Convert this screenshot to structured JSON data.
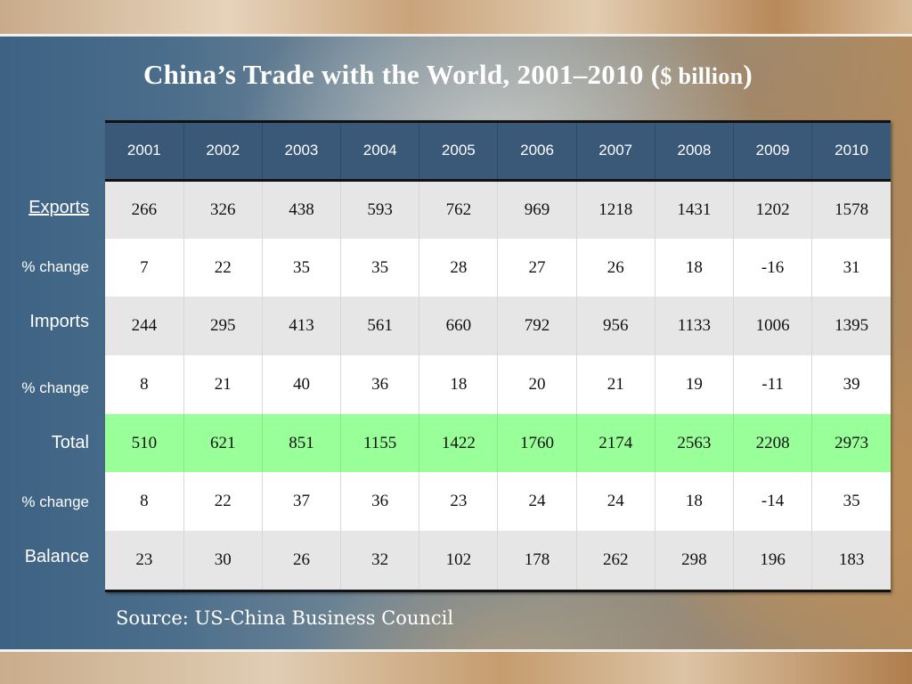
{
  "title": {
    "main": "China’s Trade with the World, 2001–2010 (",
    "unit": "$ billion",
    "close": ")"
  },
  "years": [
    "2001",
    "2002",
    "2003",
    "2004",
    "2005",
    "2006",
    "2007",
    "2008",
    "2009",
    "2010"
  ],
  "row_labels": [
    "Exports",
    "% change",
    "Imports",
    "% change",
    "Total",
    "% change",
    "Balance"
  ],
  "rows": [
    [
      "266",
      "326",
      "438",
      "593",
      "762",
      "969",
      "1218",
      "1431",
      "1202",
      "1578"
    ],
    [
      "7",
      "22",
      "35",
      "35",
      "28",
      "27",
      "26",
      "18",
      "-16",
      "31"
    ],
    [
      "244",
      "295",
      "413",
      "561",
      "660",
      "792",
      "956",
      "1133",
      "1006",
      "1395"
    ],
    [
      "8",
      "21",
      "40",
      "36",
      "18",
      "20",
      "21",
      "19",
      "-11",
      "39"
    ],
    [
      "510",
      "621",
      "851",
      "1155",
      "1422",
      "1760",
      "2174",
      "2563",
      "2208",
      "2973"
    ],
    [
      "8",
      "22",
      "37",
      "36",
      "23",
      "24",
      "24",
      "18",
      "-14",
      "35"
    ],
    [
      "23",
      "30",
      "26",
      "32",
      "102",
      "178",
      "262",
      "298",
      "196",
      "183"
    ]
  ],
  "source": "Source: US-China Business Council",
  "colors": {
    "header": "#3a5878",
    "total_row": "#99ff99",
    "shaded_row": "#e6e6e6"
  }
}
